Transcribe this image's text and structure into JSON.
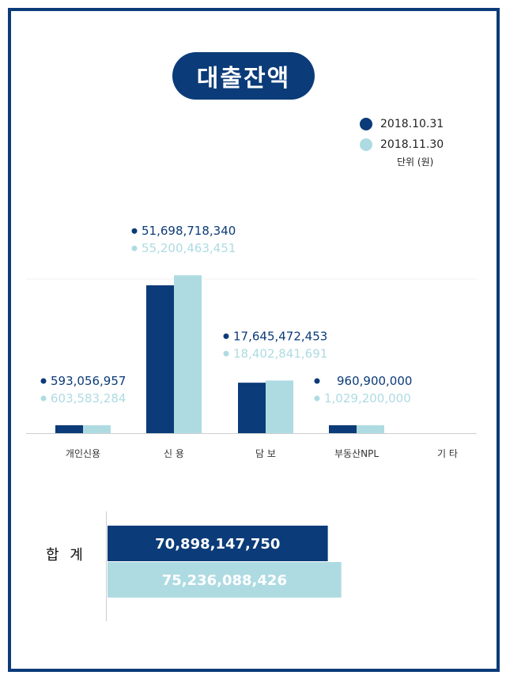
{
  "title": "대출잔액",
  "legend": {
    "series1": "2018.10.31",
    "series2": "2018.11.30",
    "unit": "단위 (원)"
  },
  "colors": {
    "series1": "#0b3b78",
    "series2": "#aedbe2"
  },
  "chart_data": [
    {
      "type": "bar",
      "categories": [
        "개인신용",
        "신 용",
        "담 보",
        "부동산NPL",
        "기 타"
      ],
      "series": [
        {
          "name": "2018.10.31",
          "values": [
            593056957,
            51698718340,
            17645472453,
            960900000,
            null
          ],
          "labels": [
            "593,056,957",
            "51,698,718,340",
            "17,645,472,453",
            "960,900,000",
            ""
          ]
        },
        {
          "name": "2018.11.30",
          "values": [
            603583284,
            55200463451,
            18402841691,
            1029200000,
            null
          ],
          "labels": [
            "603,583,284",
            "55,200,463,451",
            "18,402,841,691",
            "1,029,200,000",
            ""
          ]
        }
      ],
      "ylim": [
        0,
        63000000000
      ],
      "grid": false,
      "legend_position": "top-right"
    },
    {
      "type": "bar",
      "orientation": "horizontal",
      "categories": [
        "합 계"
      ],
      "series": [
        {
          "name": "2018.10.31",
          "values": [
            70898147750
          ],
          "labels": [
            "70,898,147,750"
          ]
        },
        {
          "name": "2018.11.30",
          "values": [
            75236088426
          ],
          "labels": [
            "75,236,088,426"
          ]
        }
      ],
      "xlim": [
        0,
        100000000000
      ]
    }
  ]
}
